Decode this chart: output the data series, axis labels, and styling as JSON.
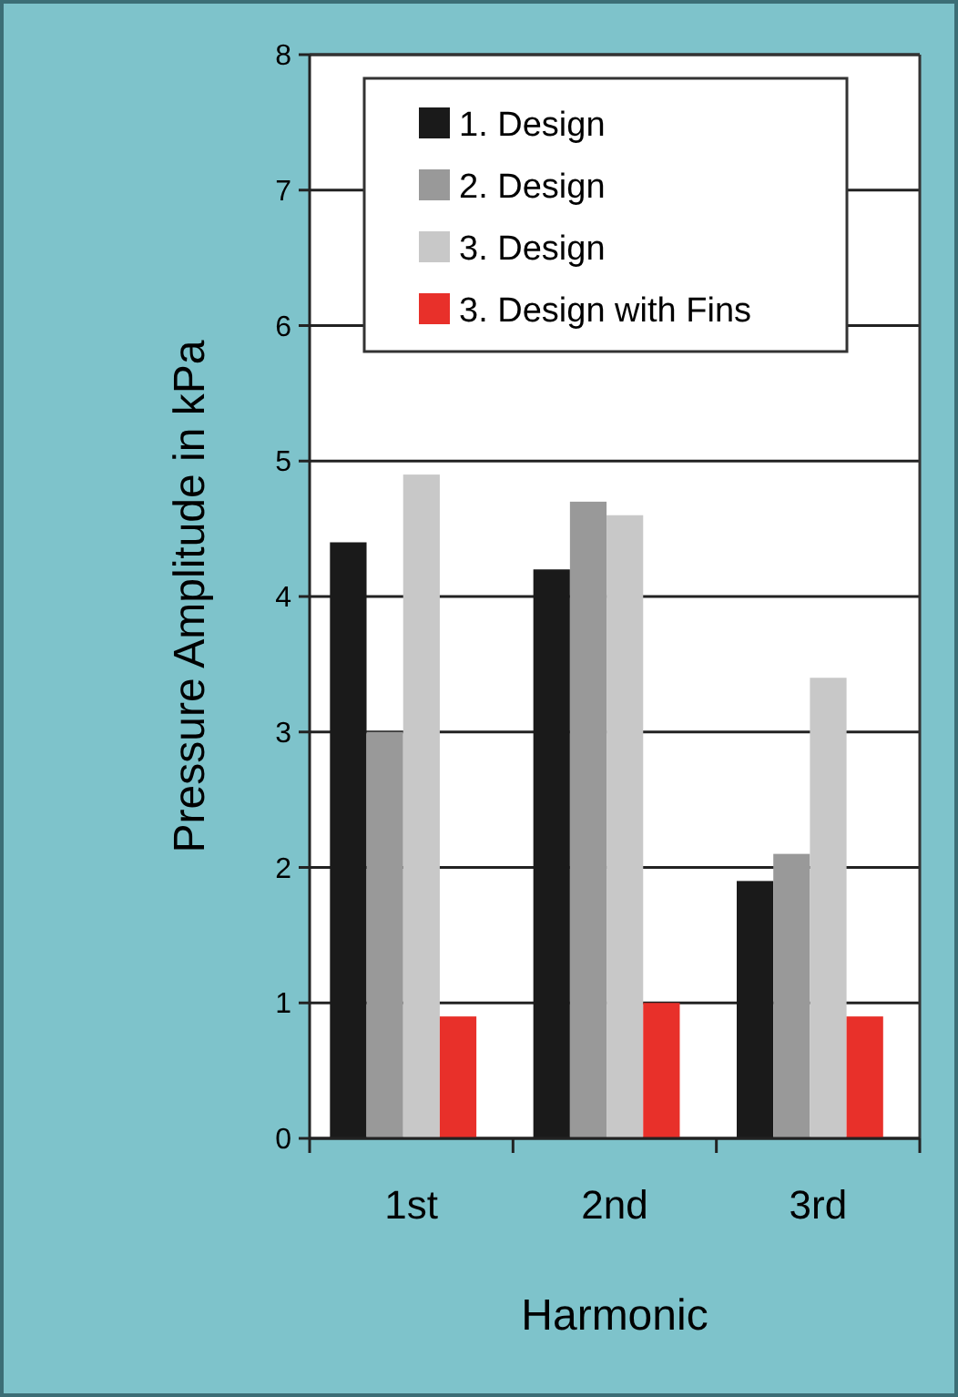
{
  "chart_data": {
    "type": "bar",
    "xlabel": "Harmonic",
    "ylabel": "Pressure Amplitude in kPa",
    "categories": [
      "1st",
      "2nd",
      "3rd"
    ],
    "series": [
      {
        "name": "1. Design",
        "color": "#1a1a1a",
        "values": [
          4.4,
          4.2,
          1.9
        ]
      },
      {
        "name": "2. Design",
        "color": "#999999",
        "values": [
          3.0,
          4.7,
          2.1
        ]
      },
      {
        "name": "3. Design",
        "color": "#c8c8c8",
        "values": [
          4.9,
          4.6,
          3.4
        ]
      },
      {
        "name": "3. Design with Fins",
        "color": "#e8302a",
        "values": [
          0.9,
          1.0,
          0.9
        ]
      }
    ],
    "ylim": [
      0,
      8
    ],
    "yticks": [
      0,
      1,
      2,
      3,
      4,
      5,
      6,
      7,
      8
    ],
    "grid": "y",
    "legend": "top"
  }
}
